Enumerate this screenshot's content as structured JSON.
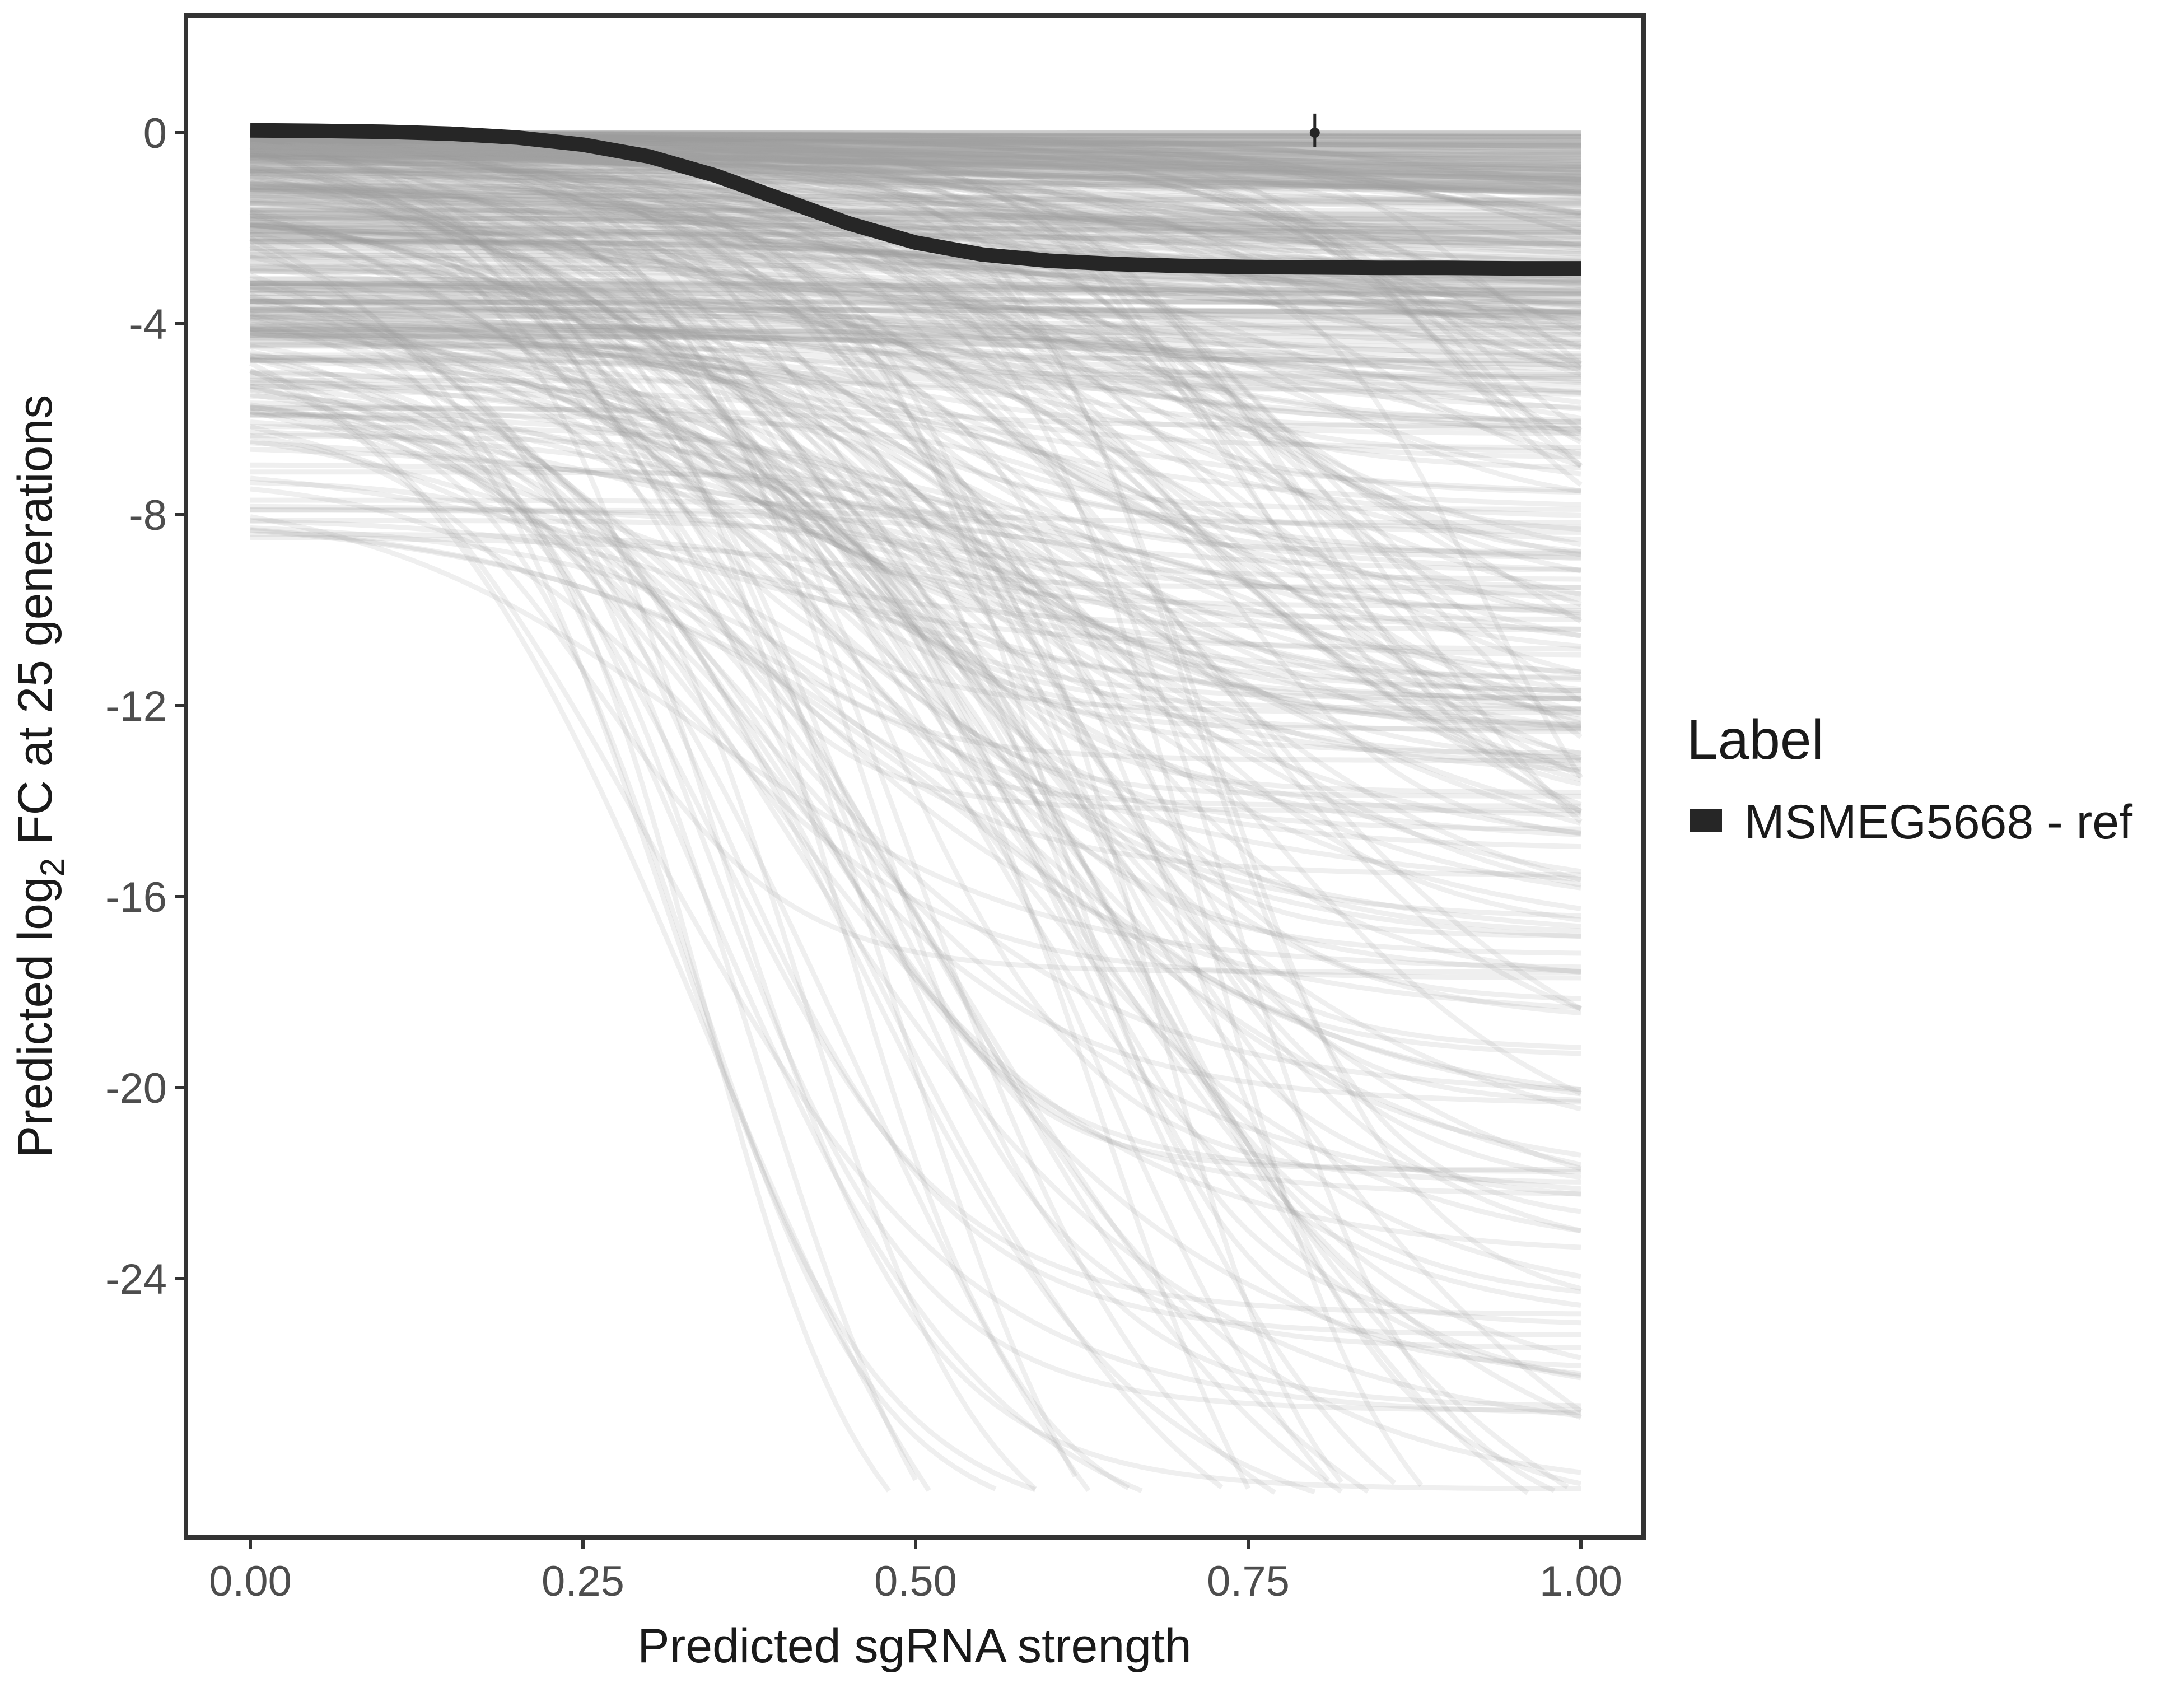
{
  "chart_data": {
    "type": "line",
    "xlabel": "Predicted sgRNA strength",
    "ylabel_prefix": "Predicted  log",
    "ylabel_subscript": "2",
    "ylabel_suffix": " FC at 25 generations",
    "xlim": [
      -0.02,
      1.1
    ],
    "ylim": [
      -29.5,
      2.5
    ],
    "x_ticks": [
      {
        "value": 0.0,
        "label": "0.00"
      },
      {
        "value": 0.25,
        "label": "0.25"
      },
      {
        "value": 0.5,
        "label": "0.50"
      },
      {
        "value": 0.75,
        "label": "0.75"
      },
      {
        "value": 1.0,
        "label": "1.00"
      }
    ],
    "y_ticks": [
      {
        "value": 0,
        "label": "0"
      },
      {
        "value": -4,
        "label": "-4"
      },
      {
        "value": -8,
        "label": "-8"
      },
      {
        "value": -12,
        "label": "-12"
      },
      {
        "value": -16,
        "label": "-16"
      },
      {
        "value": -20,
        "label": "-20"
      },
      {
        "value": -24,
        "label": "-24"
      }
    ],
    "grid": false,
    "legend": {
      "title": "Label",
      "placement": "right",
      "entries": [
        {
          "label": "MSMEG5668 - ref",
          "color": "#262626"
        }
      ]
    },
    "highlight_series": {
      "name": "MSMEG5668 - ref",
      "color": "#262626",
      "x": [
        0.0,
        0.05,
        0.1,
        0.15,
        0.2,
        0.25,
        0.3,
        0.35,
        0.4,
        0.45,
        0.5,
        0.55,
        0.6,
        0.65,
        0.7,
        0.75,
        0.8,
        0.85,
        0.9,
        0.95,
        1.0
      ],
      "y": [
        0.05,
        0.04,
        0.02,
        -0.02,
        -0.1,
        -0.25,
        -0.5,
        -0.9,
        -1.4,
        -1.9,
        -2.3,
        -2.55,
        -2.68,
        -2.75,
        -2.79,
        -2.81,
        -2.82,
        -2.83,
        -2.83,
        -2.84,
        -2.84
      ]
    },
    "error_point": {
      "x": 0.8,
      "y": 0.0,
      "ymin": -0.3,
      "ymax": 0.4,
      "color": "#262626"
    },
    "background_series": {
      "color": "#9e9e9e",
      "description_count": 420,
      "y_floor": -28.5
    }
  }
}
